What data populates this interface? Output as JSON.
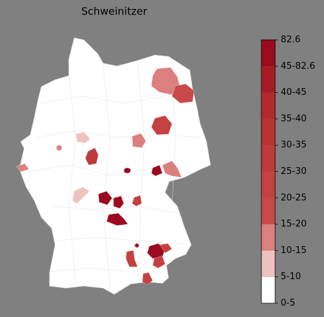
{
  "title": "Schweinitzer",
  "colorbar": {
    "labels": [
      "0-5",
      "5-10",
      "10-15",
      "15-20",
      "20-25",
      "25-30",
      "30-35",
      "35-40",
      "40-45",
      "45-82.6",
      "82.6"
    ],
    "colors": [
      "#ffffff",
      "#efc2c2",
      "#db7f7f",
      "#c94848",
      "#c44141",
      "#bf3a3a",
      "#b93333",
      "#b32a2e",
      "#a71b27",
      "#9b0a1e"
    ]
  }
}
